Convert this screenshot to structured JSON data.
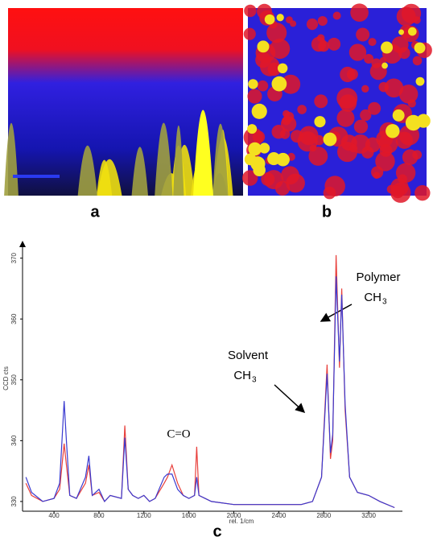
{
  "panel_labels": [
    "a",
    "b",
    "c"
  ],
  "chart_data": {
    "type": "line",
    "x_label": "rel. 1/cm",
    "y_label": "CCD cts",
    "xlim": [
      120,
      3500
    ],
    "ylim": [
      328.4,
      373
    ],
    "xticks": [
      400,
      800,
      1200,
      1600,
      2000,
      2400,
      2800,
      3200
    ],
    "yticks": [
      330,
      340,
      350,
      360,
      370
    ],
    "annotations": [
      {
        "text": "C=O"
      },
      {
        "text": "Solvent",
        "formula": "CH",
        "subscript": "3"
      },
      {
        "text": "Polymer",
        "formula": "CH",
        "subscript": "3"
      }
    ],
    "x": [
      150,
      200,
      300,
      400,
      450,
      490,
      510,
      540,
      600,
      680,
      710,
      740,
      800,
      850,
      900,
      1000,
      1030,
      1060,
      1100,
      1150,
      1200,
      1250,
      1300,
      1380,
      1410,
      1450,
      1500,
      1550,
      1600,
      1650,
      1670,
      1690,
      1800,
      2000,
      2400,
      2600,
      2700,
      2780,
      2830,
      2860,
      2880,
      2910,
      2940,
      2960,
      2990,
      3030,
      3100,
      3200,
      3300,
      3430
    ],
    "series": [
      {
        "color": "#e8403c",
        "values": [
          333,
          331,
          330,
          330.5,
          332,
          339.5,
          336,
          331,
          330.5,
          333,
          336,
          331,
          331.5,
          330,
          331,
          330.5,
          342.5,
          332,
          331,
          330.5,
          331,
          330,
          330.5,
          333,
          334,
          336,
          333,
          331,
          330.5,
          331,
          339,
          331,
          330,
          329.5,
          329.5,
          329.5,
          330,
          334,
          352.5,
          337,
          340,
          370.5,
          352,
          365,
          345,
          334,
          331.5,
          331,
          330,
          329
        ]
      },
      {
        "color": "#3a3ad0",
        "values": [
          334,
          331.5,
          330,
          330.5,
          333,
          346.5,
          340,
          331,
          330.5,
          334,
          337.5,
          331,
          332,
          330,
          331,
          330.5,
          340.5,
          332,
          331,
          330.5,
          331,
          330,
          330.5,
          334,
          334.5,
          334.5,
          332,
          331,
          330.5,
          331,
          334,
          331,
          330,
          329.5,
          329.5,
          329.5,
          330,
          334,
          351,
          338,
          341,
          367,
          353,
          364,
          346,
          334,
          331.5,
          331,
          330,
          329
        ]
      }
    ]
  }
}
